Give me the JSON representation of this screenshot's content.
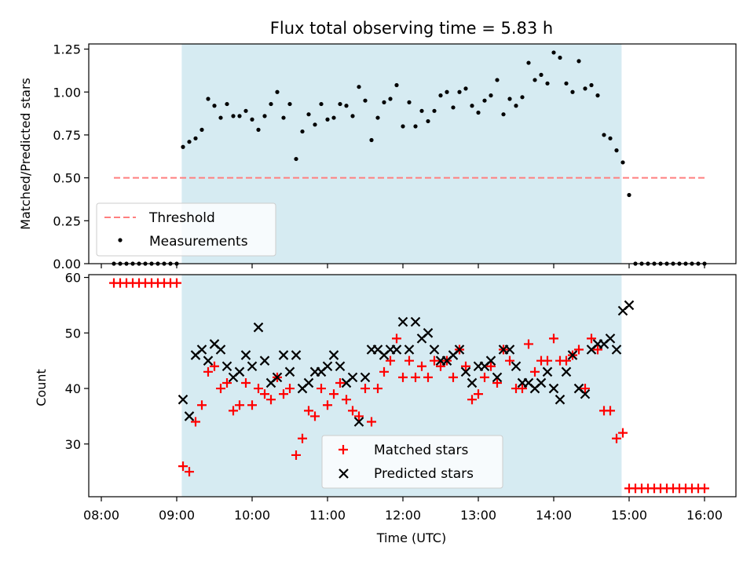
{
  "title": "Flux total observing time = 5.83 h",
  "chart_data": {
    "type": "scatter",
    "title": "Flux total observing time = 5.83 h",
    "xlabel": "Time (UTC)",
    "xlim": [
      "07:50",
      "16:25"
    ],
    "x_ticks": [
      "08:00",
      "09:00",
      "10:00",
      "11:00",
      "12:00",
      "13:00",
      "14:00",
      "15:00",
      "16:00"
    ],
    "shaded_interval": {
      "start": "09:04",
      "end": "14:54",
      "color": "#add8e6"
    },
    "top": {
      "ylabel": "Matched/Predicted stars",
      "ylim": [
        0,
        1.28
      ],
      "y_ticks": [
        "0.00",
        "0.25",
        "0.50",
        "0.75",
        "1.00",
        "1.25"
      ],
      "legend_position": "lower-left",
      "threshold": {
        "name": "Threshold",
        "value": 0.5,
        "start": "08:10",
        "end": "16:00",
        "color": "#ff7f7f"
      },
      "series": [
        {
          "name": "Measurements",
          "color": "#000000",
          "x": [
            "08:10",
            "08:15",
            "08:20",
            "08:25",
            "08:30",
            "08:35",
            "08:40",
            "08:45",
            "08:50",
            "08:55",
            "09:00",
            "09:05",
            "09:10",
            "09:15",
            "09:20",
            "09:25",
            "09:30",
            "09:35",
            "09:40",
            "09:45",
            "09:50",
            "09:55",
            "10:00",
            "10:05",
            "10:10",
            "10:15",
            "10:20",
            "10:25",
            "10:30",
            "10:35",
            "10:40",
            "10:45",
            "10:50",
            "10:55",
            "11:00",
            "11:05",
            "11:10",
            "11:15",
            "11:20",
            "11:25",
            "11:30",
            "11:35",
            "11:40",
            "11:45",
            "11:50",
            "11:55",
            "12:00",
            "12:05",
            "12:10",
            "12:15",
            "12:20",
            "12:25",
            "12:30",
            "12:35",
            "12:40",
            "12:45",
            "12:50",
            "12:55",
            "13:00",
            "13:05",
            "13:10",
            "13:15",
            "13:20",
            "13:25",
            "13:30",
            "13:35",
            "13:40",
            "13:45",
            "13:50",
            "13:55",
            "14:00",
            "14:05",
            "14:10",
            "14:15",
            "14:20",
            "14:25",
            "14:30",
            "14:35",
            "14:40",
            "14:45",
            "14:50",
            "14:55",
            "15:00",
            "15:05",
            "15:10",
            "15:15",
            "15:20",
            "15:25",
            "15:30",
            "15:35",
            "15:40",
            "15:45",
            "15:50",
            "15:55",
            "16:00"
          ],
          "y": [
            0,
            0,
            0,
            0,
            0,
            0,
            0,
            0,
            0,
            0,
            0,
            0.68,
            0.71,
            0.73,
            0.78,
            0.96,
            0.92,
            0.85,
            0.93,
            0.86,
            0.86,
            0.89,
            0.84,
            0.78,
            0.86,
            0.93,
            1.0,
            0.85,
            0.93,
            0.61,
            0.77,
            0.87,
            0.81,
            0.93,
            0.84,
            0.85,
            0.93,
            0.92,
            0.86,
            1.03,
            0.95,
            0.72,
            0.85,
            0.94,
            0.96,
            1.04,
            0.8,
            0.94,
            0.8,
            0.89,
            0.83,
            0.89,
            0.98,
            1.0,
            0.91,
            1.0,
            1.02,
            0.92,
            0.88,
            0.95,
            0.98,
            1.07,
            0.87,
            0.96,
            0.92,
            0.97,
            1.17,
            1.07,
            1.1,
            1.05,
            1.23,
            1.2,
            1.05,
            1.0,
            1.18,
            1.02,
            1.04,
            0.98,
            0.75,
            0.73,
            0.66,
            0.59,
            0.4,
            0,
            0,
            0,
            0,
            0,
            0,
            0,
            0,
            0,
            0,
            0,
            0
          ]
        }
      ]
    },
    "bottom": {
      "ylabel": "Count",
      "ylim": [
        20.5,
        60.5
      ],
      "y_ticks": [
        "30",
        "40",
        "50",
        "60"
      ],
      "legend_position": "lower-center",
      "series": [
        {
          "name": "Matched stars",
          "color": "#ff0000",
          "marker": "plus",
          "x": [
            "08:10",
            "08:15",
            "08:20",
            "08:25",
            "08:30",
            "08:35",
            "08:40",
            "08:45",
            "08:50",
            "08:55",
            "09:00",
            "09:05",
            "09:10",
            "09:15",
            "09:20",
            "09:25",
            "09:30",
            "09:35",
            "09:40",
            "09:45",
            "09:50",
            "09:55",
            "10:00",
            "10:05",
            "10:10",
            "10:15",
            "10:20",
            "10:25",
            "10:30",
            "10:35",
            "10:40",
            "10:45",
            "10:50",
            "10:55",
            "11:00",
            "11:05",
            "11:10",
            "11:15",
            "11:20",
            "11:25",
            "11:30",
            "11:35",
            "11:40",
            "11:45",
            "11:50",
            "11:55",
            "12:00",
            "12:05",
            "12:10",
            "12:15",
            "12:20",
            "12:25",
            "12:30",
            "12:35",
            "12:40",
            "12:45",
            "12:50",
            "12:55",
            "13:00",
            "13:05",
            "13:10",
            "13:15",
            "13:20",
            "13:25",
            "13:30",
            "13:35",
            "13:40",
            "13:45",
            "13:50",
            "13:55",
            "14:00",
            "14:05",
            "14:10",
            "14:15",
            "14:20",
            "14:25",
            "14:30",
            "14:35",
            "14:40",
            "14:45",
            "14:50",
            "14:55",
            "15:00",
            "15:05",
            "15:10",
            "15:15",
            "15:20",
            "15:25",
            "15:30",
            "15:35",
            "15:40",
            "15:45",
            "15:50",
            "15:55",
            "16:00"
          ],
          "y": [
            59,
            59,
            59,
            59,
            59,
            59,
            59,
            59,
            59,
            59,
            59,
            26,
            25,
            34,
            37,
            43,
            44,
            40,
            41,
            36,
            37,
            41,
            37,
            40,
            39,
            38,
            42,
            39,
            40,
            28,
            31,
            36,
            35,
            40,
            37,
            39,
            41,
            38,
            36,
            35,
            40,
            34,
            40,
            43,
            45,
            49,
            42,
            45,
            42,
            44,
            42,
            45,
            44,
            45,
            42,
            47,
            44,
            38,
            39,
            42,
            44,
            41,
            47,
            45,
            40,
            40,
            48,
            43,
            45,
            45,
            49,
            45,
            45,
            46,
            47,
            40,
            49,
            47,
            36,
            36,
            31,
            32,
            22,
            22,
            22,
            22,
            22,
            22,
            22,
            22,
            22,
            22,
            22,
            22,
            22
          ]
        },
        {
          "name": "Predicted stars",
          "color": "#000000",
          "marker": "x",
          "x": [
            "09:05",
            "09:10",
            "09:15",
            "09:20",
            "09:25",
            "09:30",
            "09:35",
            "09:40",
            "09:45",
            "09:50",
            "09:55",
            "10:00",
            "10:05",
            "10:10",
            "10:15",
            "10:20",
            "10:25",
            "10:30",
            "10:35",
            "10:40",
            "10:45",
            "10:50",
            "10:55",
            "11:00",
            "11:05",
            "11:10",
            "11:15",
            "11:20",
            "11:25",
            "11:30",
            "11:35",
            "11:40",
            "11:45",
            "11:50",
            "11:55",
            "12:00",
            "12:05",
            "12:10",
            "12:15",
            "12:20",
            "12:25",
            "12:30",
            "12:35",
            "12:40",
            "12:45",
            "12:50",
            "12:55",
            "13:00",
            "13:05",
            "13:10",
            "13:15",
            "13:20",
            "13:25",
            "13:30",
            "13:35",
            "13:40",
            "13:45",
            "13:50",
            "13:55",
            "14:00",
            "14:05",
            "14:10",
            "14:15",
            "14:20",
            "14:25",
            "14:30",
            "14:35",
            "14:40",
            "14:45",
            "14:50",
            "14:55",
            "15:00"
          ],
          "y": [
            38,
            35,
            46,
            47,
            45,
            48,
            47,
            44,
            42,
            43,
            46,
            44,
            51,
            45,
            41,
            42,
            46,
            43,
            46,
            40,
            41,
            43,
            43,
            44,
            46,
            44,
            41,
            42,
            34,
            42,
            47,
            47,
            46,
            47,
            47,
            52,
            47,
            52,
            49,
            50,
            47,
            45,
            45,
            46,
            47,
            43,
            41,
            44,
            44,
            45,
            42,
            47,
            47,
            44,
            41,
            41,
            40,
            41,
            43,
            40,
            38,
            43,
            46,
            40,
            39,
            47,
            48,
            48,
            49,
            47,
            54,
            55
          ]
        }
      ]
    }
  }
}
